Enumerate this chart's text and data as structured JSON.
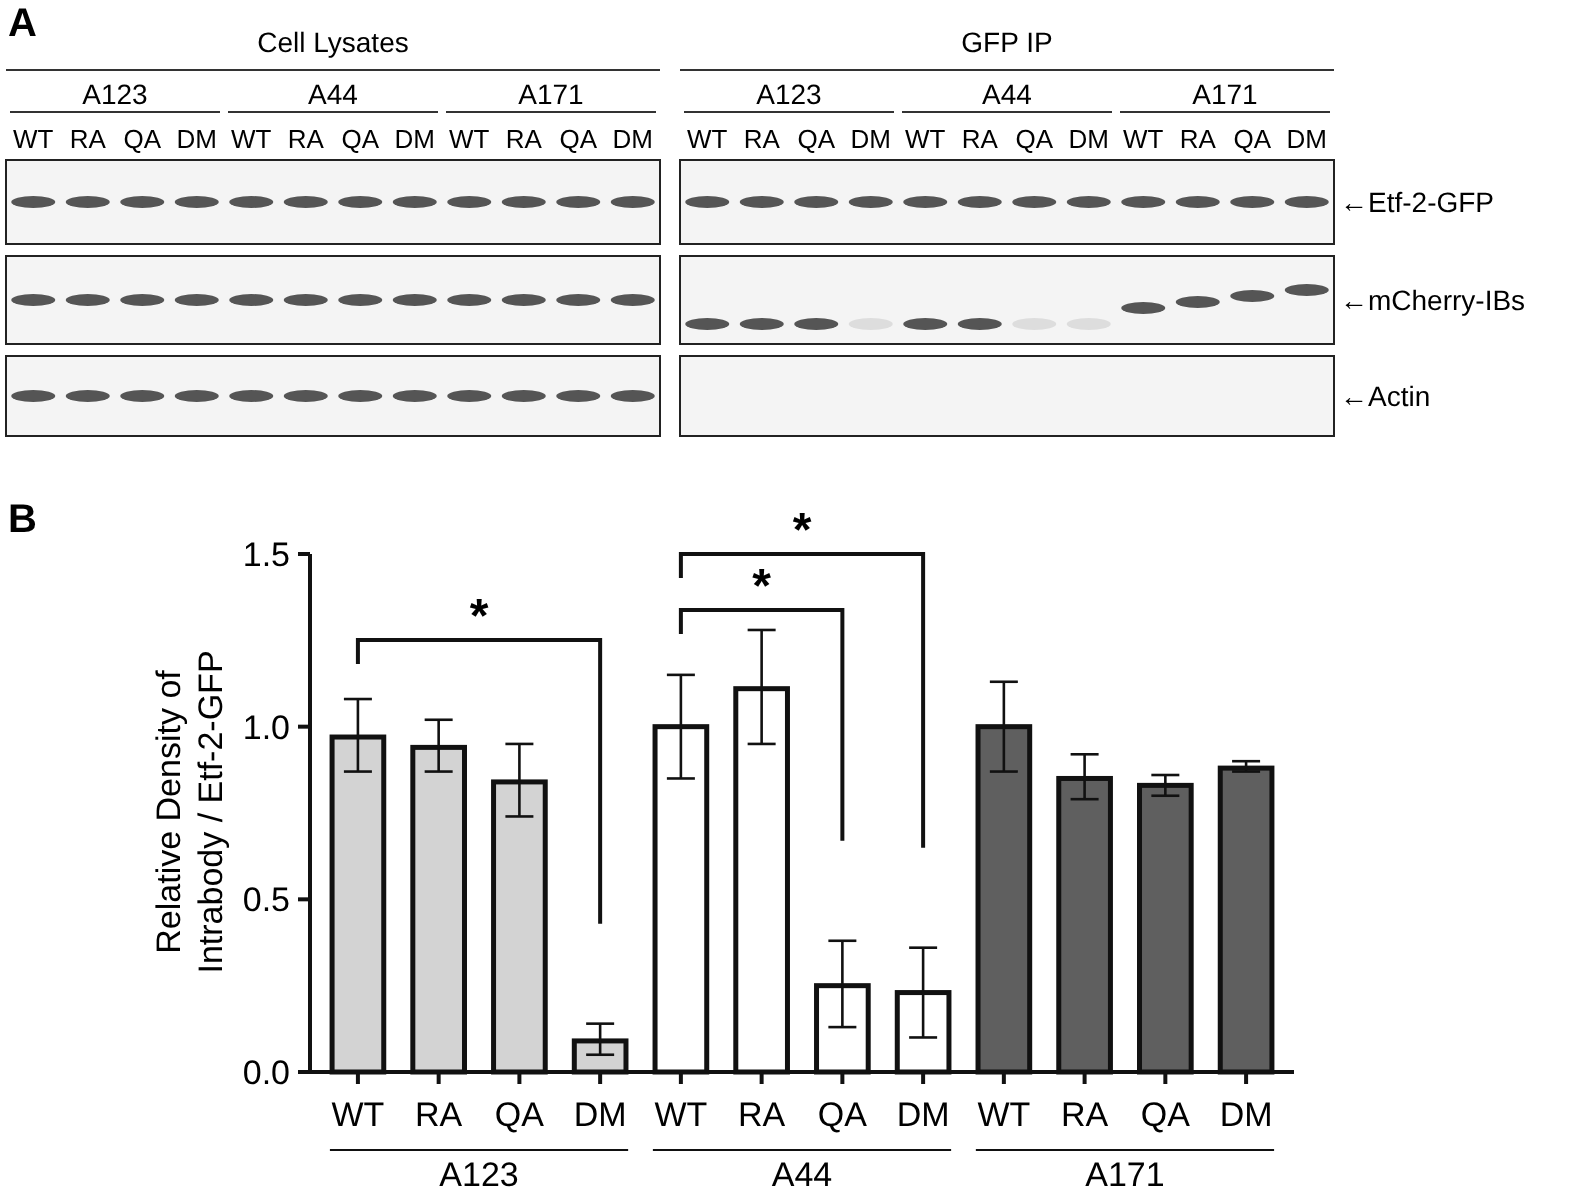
{
  "chart_data": [
    {
      "type": "other",
      "title": "A",
      "annotations": [
        "Cell Lysates",
        "GFP IP",
        "A123",
        "A44",
        "A171",
        "A123",
        "A44",
        "A171",
        "WT",
        "RA",
        "QA",
        "DM",
        "WT",
        "RA",
        "QA",
        "DM",
        "WT",
        "RA",
        "QA",
        "DM",
        "WT",
        "RA",
        "QA",
        "DM",
        "WT",
        "RA",
        "QA",
        "DM",
        "WT",
        "RA",
        "QA",
        "DM",
        "←Etf-2-GFP",
        "←mCherry-IBs",
        "←Actin"
      ]
    },
    {
      "type": "bar",
      "title": "B",
      "ylabel": "Relative Density of Intrabody / Etf-2-GFP",
      "categories": [
        "WT",
        "RA",
        "QA",
        "DM",
        "WT",
        "RA",
        "QA",
        "DM",
        "WT",
        "RA",
        "QA",
        "DM"
      ],
      "values": [
        0.97,
        0.94,
        0.84,
        0.09,
        1.0,
        1.11,
        0.25,
        0.23,
        1.0,
        0.85,
        0.83,
        0.88
      ],
      "errors": [
        [
          0.87,
          1.08
        ],
        [
          0.87,
          1.02
        ],
        [
          0.74,
          0.95
        ],
        [
          0.05,
          0.14
        ],
        [
          0.85,
          1.15
        ],
        [
          0.95,
          1.28
        ],
        [
          0.13,
          0.38
        ],
        [
          0.1,
          0.36
        ],
        [
          0.87,
          1.13
        ],
        [
          0.79,
          0.92
        ],
        [
          0.8,
          0.86
        ],
        [
          0.87,
          0.9
        ]
      ],
      "colors": [
        "#d3d3d3",
        "#d3d3d3",
        "#d3d3d3",
        "#d3d3d3",
        "#ffffff",
        "#ffffff",
        "#ffffff",
        "#ffffff",
        "#5f5f5f",
        "#5f5f5f",
        "#5f5f5f",
        "#5f5f5f"
      ],
      "ylim": [
        0,
        1.5
      ],
      "yticks": [
        {
          "value": 0,
          "label": "0.0"
        },
        {
          "value": 0.5,
          "label": "0.5"
        },
        {
          "value": 1,
          "label": "1.0"
        },
        {
          "value": 1.5,
          "label": "1.5"
        }
      ],
      "annotations": [
        "*",
        "*",
        "*",
        "A123",
        "A44",
        "A171"
      ]
    }
  ]
}
